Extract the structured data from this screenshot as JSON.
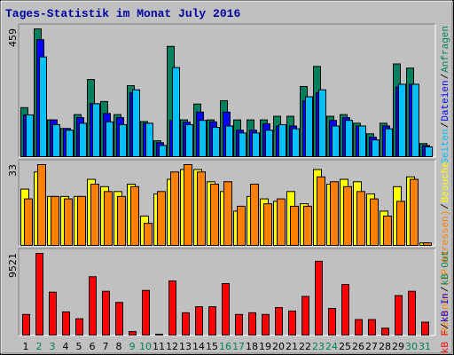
{
  "title": "Tages-Statistik im Monat July 2016",
  "legend_separator": "/",
  "chart_data": [
    {
      "type": "bar",
      "ylim": [
        0,
        459
      ],
      "yticks": [
        459
      ],
      "series": [
        {
          "name": "Anfragen",
          "color": "#00805c",
          "values": [
            176,
            459,
            132,
            101,
            151,
            277,
            198,
            151,
            255,
            126,
            57,
            396,
            132,
            189,
            132,
            201,
            132,
            132,
            132,
            145,
            145,
            252,
            324,
            145,
            151,
            120,
            82,
            120,
            333,
            318,
            47
          ]
        },
        {
          "name": "Dateien",
          "color": "#0000ff",
          "values": [
            150,
            420,
            132,
            101,
            140,
            190,
            155,
            140,
            230,
            120,
            50,
            130,
            124,
            160,
            125,
            160,
            95,
            95,
            118,
            110,
            110,
            200,
            230,
            130,
            140,
            110,
            70,
            110,
            250,
            260,
            40
          ]
        },
        {
          "name": "Seiten",
          "color": "#00c0ff",
          "values": [
            150,
            358,
            115,
            95,
            120,
            190,
            125,
            115,
            240,
            120,
            40,
            320,
            115,
            130,
            105,
            110,
            85,
            85,
            95,
            115,
            100,
            215,
            240,
            110,
            130,
            110,
            60,
            100,
            260,
            260,
            35
          ]
        }
      ]
    },
    {
      "type": "bar",
      "ylim": [
        0,
        33
      ],
      "yticks": [
        33
      ],
      "series": [
        {
          "name": "Besuche",
          "color": "#ffff00",
          "values": [
            23,
            30,
            20,
            20,
            20,
            27,
            24,
            22,
            25,
            12,
            21,
            27,
            31,
            31,
            26,
            22,
            14,
            20,
            19,
            18,
            22,
            17,
            31,
            25,
            27,
            26,
            21,
            14,
            24,
            28,
            1
          ]
        },
        {
          "name": "Rechner (IP-Adressen)",
          "color": "#ff8000",
          "values": [
            19,
            33,
            20,
            19,
            20,
            25,
            22,
            20,
            24,
            9,
            22,
            30,
            33,
            30,
            25,
            26,
            16,
            25,
            17,
            19,
            16,
            16,
            28,
            26,
            24,
            22,
            19,
            12,
            18,
            27,
            1
          ]
        }
      ]
    },
    {
      "type": "bar",
      "ylim": [
        0,
        9521
      ],
      "yticks": [
        9521
      ],
      "legend_only": [
        {
          "name": "kB Out",
          "color": "#00805c"
        },
        {
          "name": "kB In",
          "color": "#0000ff"
        }
      ],
      "series": [
        {
          "name": "kB F",
          "color": "#ff0000",
          "values": [
            2400,
            9521,
            5000,
            2700,
            1900,
            6800,
            5100,
            3800,
            400,
            5200,
            80,
            6300,
            2600,
            3300,
            3300,
            6000,
            2400,
            2600,
            2400,
            3200,
            2800,
            4500,
            8600,
            3100,
            5900,
            1800,
            1800,
            800,
            4600,
            5100,
            1500
          ]
        }
      ],
      "categories": [
        "1",
        "2",
        "3",
        "4",
        "5",
        "6",
        "7",
        "8",
        "9",
        "10",
        "11",
        "12",
        "13",
        "14",
        "15",
        "16",
        "17",
        "18",
        "19",
        "20",
        "21",
        "22",
        "23",
        "24",
        "25",
        "26",
        "27",
        "28",
        "29",
        "30",
        "31"
      ],
      "category_colors": [
        "#000000",
        "#00805c",
        "#00805c",
        "#000000",
        "#000000",
        "#000000",
        "#000000",
        "#000000",
        "#00805c",
        "#00805c",
        "#000000",
        "#000000",
        "#000000",
        "#000000",
        "#000000",
        "#00805c",
        "#00805c",
        "#000000",
        "#000000",
        "#000000",
        "#000000",
        "#000000",
        "#00805c",
        "#00805c",
        "#000000",
        "#000000",
        "#000000",
        "#000000",
        "#000000",
        "#00805c",
        "#00805c"
      ]
    }
  ]
}
